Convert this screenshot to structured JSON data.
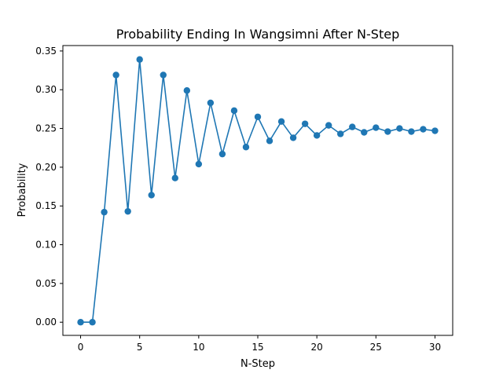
{
  "chart_data": {
    "type": "line",
    "title": "Probability Ending In  Wangsimni After N-Step",
    "xlabel": "N-Step",
    "ylabel": "Probability",
    "xlim": [
      -1.5,
      31.5
    ],
    "ylim": [
      -0.017,
      0.357
    ],
    "xticks": [
      0,
      5,
      10,
      15,
      20,
      25,
      30
    ],
    "xtick_labels": [
      "0",
      "5",
      "10",
      "15",
      "20",
      "25",
      "30"
    ],
    "yticks": [
      0.0,
      0.05,
      0.1,
      0.15,
      0.2,
      0.25,
      0.3,
      0.35
    ],
    "ytick_labels": [
      "0.00",
      "0.05",
      "0.10",
      "0.15",
      "0.20",
      "0.25",
      "0.30",
      "0.35"
    ],
    "grid": false,
    "legend": false,
    "color": "#1f77b4",
    "marker": "circle",
    "x": [
      0,
      1,
      2,
      3,
      4,
      5,
      6,
      7,
      8,
      9,
      10,
      11,
      12,
      13,
      14,
      15,
      16,
      17,
      18,
      19,
      20,
      21,
      22,
      23,
      24,
      25,
      26,
      27,
      28,
      29,
      30
    ],
    "series": [
      {
        "values": [
          0.0,
          0.0,
          0.142,
          0.319,
          0.143,
          0.339,
          0.164,
          0.319,
          0.186,
          0.299,
          0.204,
          0.283,
          0.217,
          0.273,
          0.226,
          0.265,
          0.234,
          0.259,
          0.238,
          0.256,
          0.241,
          0.254,
          0.243,
          0.252,
          0.245,
          0.251,
          0.246,
          0.25,
          0.246,
          0.249,
          0.247
        ]
      }
    ]
  }
}
